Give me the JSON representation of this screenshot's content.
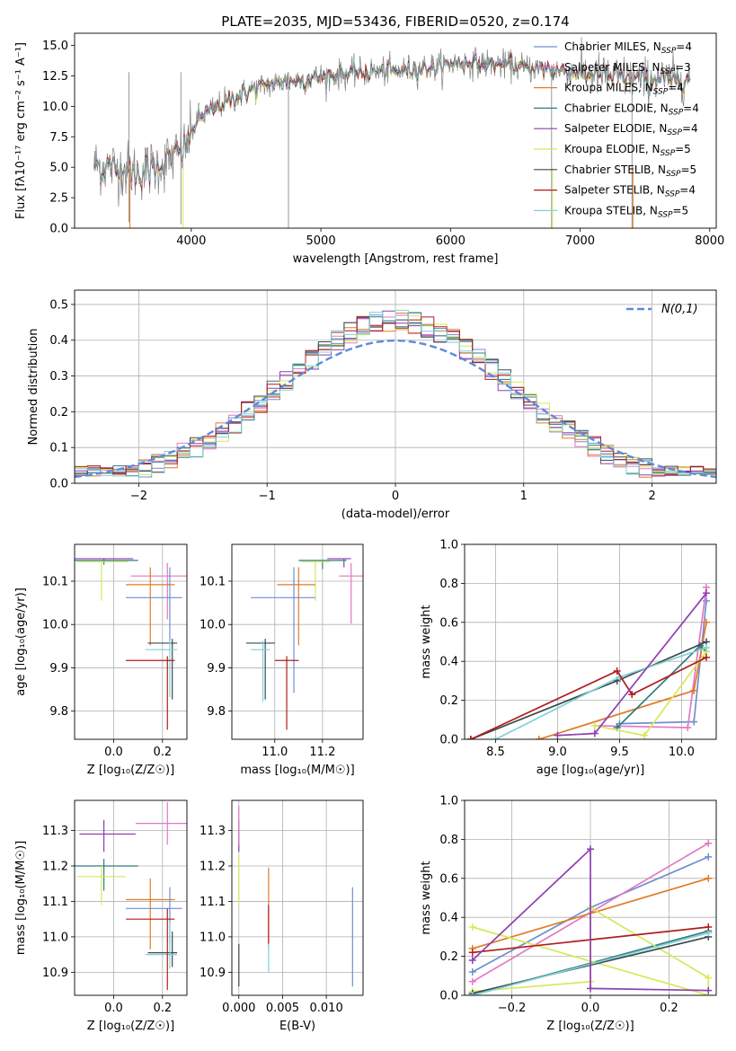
{
  "figure": {
    "title": "PLATE=2035, MJD=53436, FIBERID=0520, z=0.174"
  },
  "chart_data": [
    {
      "id": "spectrum",
      "type": "line",
      "title": "PLATE=2035, MJD=53436, FIBERID=0520, z=0.174",
      "xlabel": "wavelength [Angstrom, rest frame]",
      "ylabel": "Flux [fλ10⁻¹⁷ erg cm⁻² s⁻¹ A⁻¹]",
      "xlim": [
        3100,
        8050
      ],
      "ylim": [
        0,
        16
      ],
      "xticks": [
        4000,
        5000,
        6000,
        7000,
        8000
      ],
      "yticks": [
        0.0,
        2.5,
        5.0,
        7.5,
        10.0,
        12.5,
        15.0
      ],
      "grid": false,
      "legend_position": "top-right",
      "data_x_range": [
        3250,
        7850
      ],
      "anchors": {
        "x": [
          3250,
          3400,
          3600,
          3800,
          3950,
          4050,
          4250,
          4500,
          4700,
          5000,
          5300,
          5600,
          5900,
          6100,
          6300,
          6600,
          6900,
          7200,
          7500,
          7850
        ],
        "y": [
          5.2,
          5.0,
          4.6,
          5.4,
          6.5,
          9.0,
          10.3,
          11.5,
          12.0,
          12.4,
          12.8,
          12.9,
          13.3,
          13.6,
          13.5,
          13.2,
          12.9,
          12.5,
          12.2,
          12.3
        ]
      },
      "series": [
        {
          "name": "Chabrier MILES, N$_{SSP}$=4",
          "label": "Chabrier MILES, N",
          "sub": "SSP",
          "suffix": "=4",
          "color": "#6f8fd0"
        },
        {
          "name": "Salpeter MILES, N$_{SSP}$=3",
          "label": "Salpeter MILES, N",
          "sub": "SSP",
          "suffix": "=3",
          "color": "#e377c2"
        },
        {
          "name": "Kroupa MILES, N$_{SSP}$=4",
          "label": "Kroupa MILES, N",
          "sub": "SSP",
          "suffix": "=4",
          "color": "#e07b25"
        },
        {
          "name": "Chabrier ELODIE, N$_{SSP}$=4",
          "label": "Chabrier ELODIE, N",
          "sub": "SSP",
          "suffix": "=4",
          "color": "#2f7f7f"
        },
        {
          "name": "Salpeter ELODIE, N$_{SSP}$=4",
          "label": "Salpeter ELODIE, N",
          "sub": "SSP",
          "suffix": "=4",
          "color": "#8e3fb0"
        },
        {
          "name": "Kroupa ELODIE, N$_{SSP}$=5",
          "label": "Kroupa ELODIE, N",
          "sub": "SSP",
          "suffix": "=5",
          "color": "#d6e85a"
        },
        {
          "name": "Chabrier STELIB, N$_{SSP}$=5",
          "label": "Chabrier STELIB, N",
          "sub": "SSP",
          "suffix": "=5",
          "color": "#3a4a4a"
        },
        {
          "name": "Salpeter STELIB, N$_{SSP}$=4",
          "label": "Salpeter STELIB, N",
          "sub": "SSP",
          "suffix": "=4",
          "color": "#b01c1c"
        },
        {
          "name": "Kroupa STELIB, N$_{SSP}$=5",
          "label": "Kroupa STELIB, N",
          "sub": "SSP",
          "suffix": "=5",
          "color": "#7fd1d8"
        }
      ],
      "data_color": "#7f7f7f"
    },
    {
      "id": "residuals",
      "type": "histogram",
      "xlabel": "(data-model)/error",
      "ylabel": "Normed distribution",
      "xlim": [
        -2.5,
        2.5
      ],
      "ylim": [
        0,
        0.54
      ],
      "xticks": [
        -2,
        -1,
        0,
        1,
        2
      ],
      "yticks": [
        0.0,
        0.1,
        0.2,
        0.3,
        0.4,
        0.5
      ],
      "grid": true,
      "legend_position": "top-right",
      "legend_label": "N(0,1)",
      "bin_width": 0.1,
      "bin_start": -2.5,
      "gaussian_color": "#5b8bd9"
    },
    {
      "id": "age_vs_Z",
      "type": "errorbar",
      "xlabel": "Z [log₁₀(Z/Z☉)]",
      "ylabel": "age  [log₁₀(age/yr)]",
      "xlim": [
        -0.16,
        0.3
      ],
      "ylim": [
        9.735,
        10.185
      ],
      "xticks": [
        0.0,
        0.2
      ],
      "yticks": [
        9.8,
        9.9,
        10.0,
        10.1
      ],
      "grid": true,
      "points": [
        {
          "x": -0.04,
          "y": 10.152,
          "xerr": [
            0.12,
            0.12
          ],
          "yerr": [
            0.008,
            0.0
          ],
          "color": "#8e3fb0"
        },
        {
          "x": -0.04,
          "y": 10.148,
          "xerr": [
            0.12,
            0.14
          ],
          "yerr": [
            0.01,
            0.0
          ],
          "color": "#2f7f7f"
        },
        {
          "x": -0.05,
          "y": 10.145,
          "xerr": [
            0.1,
            0.11
          ],
          "yerr": [
            0.09,
            0.0
          ],
          "color": "#d6e85a"
        },
        {
          "x": 0.22,
          "y": 10.112,
          "xerr": [
            0.15,
            0.09
          ],
          "yerr": [
            0.1,
            0.03
          ],
          "color": "#e377c2"
        },
        {
          "x": 0.15,
          "y": 10.092,
          "xerr": [
            0.1,
            0.1
          ],
          "yerr": [
            0.14,
            0.04
          ],
          "color": "#e07b25"
        },
        {
          "x": 0.23,
          "y": 10.062,
          "xerr": [
            0.18,
            0.05
          ],
          "yerr": [
            0.1,
            0.07
          ],
          "color": "#6f8fd0"
        },
        {
          "x": 0.24,
          "y": 9.957,
          "xerr": [
            0.1,
            0.02
          ],
          "yerr": [
            0.13,
            0.01
          ],
          "color": "#3a4a4a"
        },
        {
          "x": 0.23,
          "y": 9.942,
          "xerr": [
            0.1,
            0.03
          ],
          "yerr": [
            0.11,
            0.02
          ],
          "color": "#7fd1d8"
        },
        {
          "x": 0.22,
          "y": 9.917,
          "xerr": [
            0.17,
            0.03
          ],
          "yerr": [
            0.16,
            0.01
          ],
          "color": "#b01c1c"
        }
      ]
    },
    {
      "id": "age_vs_mass",
      "type": "errorbar",
      "xlabel": "mass [log₁₀(M/M☉)]",
      "ylabel": "",
      "xlim": [
        10.82,
        11.37
      ],
      "ylim": [
        9.735,
        10.185
      ],
      "xticks": [
        11.0,
        11.2
      ],
      "yticks": [
        9.8,
        9.9,
        10.0,
        10.1
      ],
      "grid": true,
      "points": [
        {
          "x": 11.29,
          "y": 10.152,
          "xerr": [
            0.07,
            0.03
          ],
          "yerr": [
            0.02,
            0.0
          ],
          "color": "#8e3fb0"
        },
        {
          "x": 11.2,
          "y": 10.148,
          "xerr": [
            0.1,
            0.1
          ],
          "yerr": [
            0.02,
            0.0
          ],
          "color": "#2f7f7f"
        },
        {
          "x": 11.17,
          "y": 10.145,
          "xerr": [
            0.06,
            0.06
          ],
          "yerr": [
            0.09,
            0.0
          ],
          "color": "#d6e85a"
        },
        {
          "x": 11.32,
          "y": 10.112,
          "xerr": [
            0.05,
            0.05
          ],
          "yerr": [
            0.11,
            0.03
          ],
          "color": "#e377c2"
        },
        {
          "x": 11.1,
          "y": 10.092,
          "xerr": [
            0.09,
            0.07
          ],
          "yerr": [
            0.14,
            0.04
          ],
          "color": "#e07b25"
        },
        {
          "x": 11.08,
          "y": 10.062,
          "xerr": [
            0.18,
            0.09
          ],
          "yerr": [
            0.22,
            0.07
          ],
          "color": "#6f8fd0"
        },
        {
          "x": 10.96,
          "y": 9.957,
          "xerr": [
            0.08,
            0.04
          ],
          "yerr": [
            0.13,
            0.01
          ],
          "color": "#3a4a4a"
        },
        {
          "x": 10.95,
          "y": 9.942,
          "xerr": [
            0.05,
            0.03
          ],
          "yerr": [
            0.12,
            0.02
          ],
          "color": "#7fd1d8"
        },
        {
          "x": 11.05,
          "y": 9.917,
          "xerr": [
            0.05,
            0.05
          ],
          "yerr": [
            0.16,
            0.01
          ],
          "color": "#b01c1c"
        }
      ]
    },
    {
      "id": "weight_vs_age",
      "type": "line",
      "xlabel": "age  [log₁₀(age/yr)]",
      "ylabel": "mass weight",
      "xlim": [
        8.25,
        10.28
      ],
      "ylim": [
        0,
        1.0
      ],
      "xticks": [
        8.5,
        9.0,
        9.5,
        10.0
      ],
      "yticks": [
        0.0,
        0.2,
        0.4,
        0.6,
        0.8,
        1.0
      ],
      "grid": true,
      "series": [
        {
          "color": "#6f8fd0",
          "x": [
            9.5,
            10.1,
            10.2
          ],
          "y": [
            0.08,
            0.09,
            0.71
          ]
        },
        {
          "color": "#e377c2",
          "x": [
            9.3,
            10.05,
            10.2
          ],
          "y": [
            0.07,
            0.06,
            0.78
          ]
        },
        {
          "color": "#e07b25",
          "x": [
            8.85,
            10.1,
            10.2
          ],
          "y": [
            0.0,
            0.25,
            0.6
          ]
        },
        {
          "color": "#2f7f7f",
          "x": [
            9.48,
            10.15,
            10.2
          ],
          "y": [
            0.06,
            0.48,
            0.45
          ]
        },
        {
          "color": "#d6e85a",
          "x": [
            9.3,
            9.7,
            10.2
          ],
          "y": [
            0.07,
            0.02,
            0.45
          ]
        },
        {
          "color": "#3a4a4a",
          "x": [
            8.3,
            9.48,
            10.2
          ],
          "y": [
            0.0,
            0.3,
            0.5
          ]
        },
        {
          "color": "#7fd1d8",
          "x": [
            8.5,
            9.5,
            10.2
          ],
          "y": [
            0.0,
            0.32,
            0.47
          ]
        },
        {
          "color": "#b01c1c",
          "x": [
            8.3,
            9.48,
            9.6,
            10.2
          ],
          "y": [
            0.0,
            0.35,
            0.23,
            0.42
          ]
        },
        {
          "color": "#8e3fb0",
          "x": [
            9.0,
            9.3,
            10.2
          ],
          "y": [
            0.02,
            0.03,
            0.75
          ]
        }
      ]
    },
    {
      "id": "mass_vs_Z",
      "type": "errorbar",
      "xlabel": "Z [log₁₀(Z/Z☉)]",
      "ylabel": "mass [log₁₀(M/M☉)]",
      "xlim": [
        -0.16,
        0.3
      ],
      "ylim": [
        10.835,
        11.385
      ],
      "xticks": [
        0.0,
        0.2
      ],
      "yticks": [
        10.9,
        11.0,
        11.1,
        11.2,
        11.3
      ],
      "grid": true,
      "points": [
        {
          "x": -0.04,
          "y": 11.29,
          "xerr": [
            0.1,
            0.13
          ],
          "yerr": [
            0.05,
            0.04
          ],
          "color": "#8e3fb0"
        },
        {
          "x": -0.04,
          "y": 11.2,
          "xerr": [
            0.12,
            0.14
          ],
          "yerr": [
            0.07,
            0.02
          ],
          "color": "#2f7f7f"
        },
        {
          "x": -0.05,
          "y": 11.17,
          "xerr": [
            0.1,
            0.1
          ],
          "yerr": [
            0.08,
            0.03
          ],
          "color": "#d6e85a"
        },
        {
          "x": 0.22,
          "y": 11.32,
          "xerr": [
            0.13,
            0.08
          ],
          "yerr": [
            0.06,
            0.06
          ],
          "color": "#e377c2"
        },
        {
          "x": 0.15,
          "y": 11.105,
          "xerr": [
            0.1,
            0.1
          ],
          "yerr": [
            0.14,
            0.06
          ],
          "color": "#e07b25"
        },
        {
          "x": 0.23,
          "y": 11.08,
          "xerr": [
            0.18,
            0.05
          ],
          "yerr": [
            0.1,
            0.06
          ],
          "color": "#6f8fd0"
        },
        {
          "x": 0.24,
          "y": 10.955,
          "xerr": [
            0.1,
            0.02
          ],
          "yerr": [
            0.04,
            0.06
          ],
          "color": "#3a4a4a"
        },
        {
          "x": 0.23,
          "y": 10.95,
          "xerr": [
            0.1,
            0.03
          ],
          "yerr": [
            0.04,
            0.09
          ],
          "color": "#7fd1d8"
        },
        {
          "x": 0.22,
          "y": 11.05,
          "xerr": [
            0.17,
            0.03
          ],
          "yerr": [
            0.2,
            0.03
          ],
          "color": "#b01c1c"
        }
      ]
    },
    {
      "id": "mass_vs_ebv",
      "type": "errorbar",
      "xlabel": "E(B-V)",
      "ylabel": "",
      "xlim": [
        -0.0008,
        0.0142
      ],
      "ylim": [
        10.835,
        11.385
      ],
      "xticks": [
        0.0,
        0.005,
        0.01
      ],
      "xticklabels": [
        "0.000",
        "0.005",
        "0.010"
      ],
      "yticks": [
        10.9,
        11.0,
        11.1,
        11.2,
        11.3
      ],
      "grid": true,
      "points": [
        {
          "x": 0.0,
          "y": 11.29,
          "xerr": [
            0,
            0
          ],
          "yerr": [
            0.05,
            0.04
          ],
          "color": "#8e3fb0"
        },
        {
          "x": 0.0,
          "y": 11.32,
          "xerr": [
            0,
            0
          ],
          "yerr": [
            0.06,
            0.05
          ],
          "color": "#e377c2"
        },
        {
          "x": 0.0,
          "y": 11.17,
          "xerr": [
            0,
            0
          ],
          "yerr": [
            0.08,
            0.06
          ],
          "color": "#d6e85a"
        },
        {
          "x": 0.0,
          "y": 10.92,
          "xerr": [
            0,
            0
          ],
          "yerr": [
            0.06,
            0.06
          ],
          "color": "#3a4a4a"
        },
        {
          "x": 0.0034,
          "y": 11.105,
          "xerr": [
            0,
            0
          ],
          "yerr": [
            0.14,
            0.09
          ],
          "color": "#e07b25"
        },
        {
          "x": 0.0034,
          "y": 11.05,
          "xerr": [
            0,
            0
          ],
          "yerr": [
            0.07,
            0.04
          ],
          "color": "#b01c1c"
        },
        {
          "x": 0.0034,
          "y": 10.94,
          "xerr": [
            0,
            0
          ],
          "yerr": [
            0.04,
            0.04
          ],
          "color": "#7fd1d8"
        },
        {
          "x": 0.013,
          "y": 11.0,
          "xerr": [
            0,
            0
          ],
          "yerr": [
            0.14,
            0.14
          ],
          "color": "#6f8fd0"
        }
      ]
    },
    {
      "id": "weight_vs_Z",
      "type": "line",
      "xlabel": "Z [log₁₀(Z/Z☉)]",
      "ylabel": "mass weight",
      "xlim": [
        -0.32,
        0.32
      ],
      "ylim": [
        0,
        1.0
      ],
      "xticks": [
        -0.2,
        0.0,
        0.2
      ],
      "yticks": [
        0.0,
        0.2,
        0.4,
        0.6,
        0.8,
        1.0
      ],
      "grid": true,
      "series": [
        {
          "color": "#6f8fd0",
          "x": [
            -0.3,
            0.0,
            0.3
          ],
          "y": [
            0.12,
            0.45,
            0.71
          ]
        },
        {
          "color": "#e377c2",
          "x": [
            -0.3,
            0.3
          ],
          "y": [
            0.07,
            0.78
          ]
        },
        {
          "color": "#e07b25",
          "x": [
            -0.3,
            0.3
          ],
          "y": [
            0.24,
            0.6
          ]
        },
        {
          "color": "#2f7f7f",
          "x": [
            -0.3,
            0.3
          ],
          "y": [
            0.0,
            0.33
          ]
        },
        {
          "color": "#d6e85a",
          "x": [
            -0.3,
            0.0,
            0.0,
            0.3,
            0.3,
            -0.3
          ],
          "y": [
            0.02,
            0.07,
            0.45,
            0.09,
            0.0,
            0.35
          ]
        },
        {
          "color": "#3a4a4a",
          "x": [
            -0.3,
            0.3
          ],
          "y": [
            0.01,
            0.3
          ]
        },
        {
          "color": "#7fd1d8",
          "x": [
            -0.3,
            0.3
          ],
          "y": [
            0.0,
            0.32
          ]
        },
        {
          "color": "#b01c1c",
          "x": [
            -0.3,
            0.3
          ],
          "y": [
            0.22,
            0.35
          ]
        },
        {
          "color": "#8e3fb0",
          "x": [
            -0.3,
            0.0,
            0.0,
            0.3
          ],
          "y": [
            0.18,
            0.75,
            0.035,
            0.025
          ]
        }
      ]
    }
  ]
}
